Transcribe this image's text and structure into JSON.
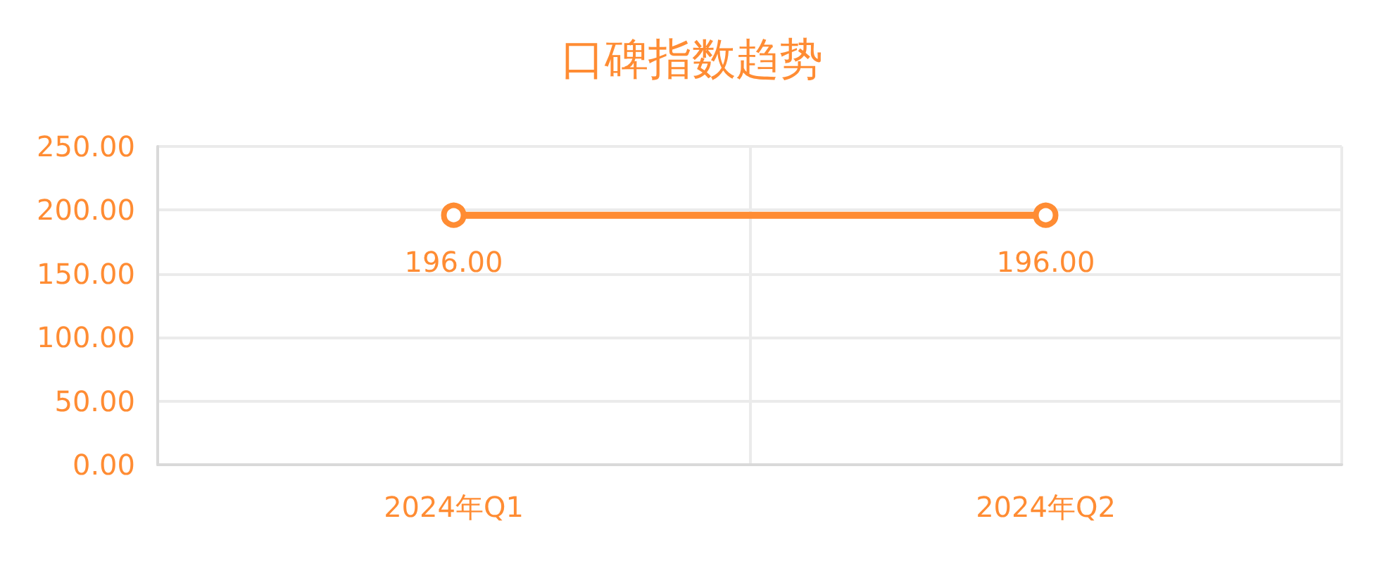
{
  "chart_data": {
    "type": "line",
    "title": "口碑指数趋势",
    "categories": [
      "2024年Q1",
      "2024年Q2"
    ],
    "series": [
      {
        "color": "#ff8c33",
        "values": [
          196,
          196
        ],
        "value_labels": [
          "196.00",
          "196.00"
        ]
      }
    ],
    "ylim": [
      0,
      250
    ],
    "yticks": [
      {
        "value": 0,
        "label": "0.00"
      },
      {
        "value": 50,
        "label": "50.00"
      },
      {
        "value": 100,
        "label": "100.00"
      },
      {
        "value": 150,
        "label": "150.00"
      },
      {
        "value": 200,
        "label": "200.00"
      },
      {
        "value": 250,
        "label": "250.00"
      }
    ],
    "grid": true,
    "marker": "circle",
    "line_style": "solid"
  }
}
